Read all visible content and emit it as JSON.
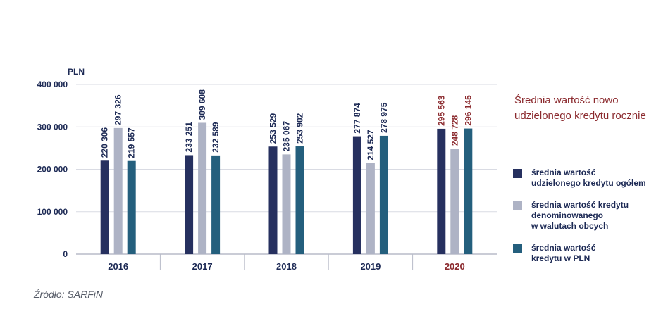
{
  "chart_data": {
    "type": "bar",
    "unit_label": "PLN",
    "categories": [
      "2016",
      "2017",
      "2018",
      "2019",
      "2020"
    ],
    "highlight_category": "2020",
    "ylim": [
      0,
      400000
    ],
    "yticks": [
      0,
      100000,
      200000,
      300000,
      400000
    ],
    "ytick_labels": [
      "0",
      "100 000",
      "200 000",
      "300 000",
      "400 000"
    ],
    "grid": true,
    "series": [
      {
        "name": "średnia wartość\nudzielonego kredytu ogółem",
        "color": "#26305f",
        "values": [
          220306,
          233251,
          253529,
          277874,
          295563
        ],
        "labels": [
          "220 306",
          "233 251",
          "253 529",
          "277 874",
          "295 563"
        ]
      },
      {
        "name": "średnia wartość kredytu\ndenominowanego\nw walutach obcych",
        "color": "#aeb3c5",
        "values": [
          297326,
          309608,
          235067,
          214527,
          248728
        ],
        "labels": [
          "297 326",
          "309 608",
          "235 067",
          "214 527",
          "248 728"
        ]
      },
      {
        "name": "średnia wartość\nkredytu w PLN",
        "color": "#245f7d",
        "values": [
          219557,
          232589,
          253902,
          278975,
          296145
        ],
        "labels": [
          "219 557",
          "232 589",
          "253 902",
          "278 975",
          "296 145"
        ]
      }
    ],
    "legend_position": "right"
  },
  "title": "Średnia wartość nowo udzielonego kredytu rocznie",
  "source": "Źródło: SARFiN",
  "colors": {
    "text": "#1d2a55",
    "highlight": "#8b2a2e",
    "grid": "#d9dbe3",
    "axis": "#b8bcc9"
  }
}
